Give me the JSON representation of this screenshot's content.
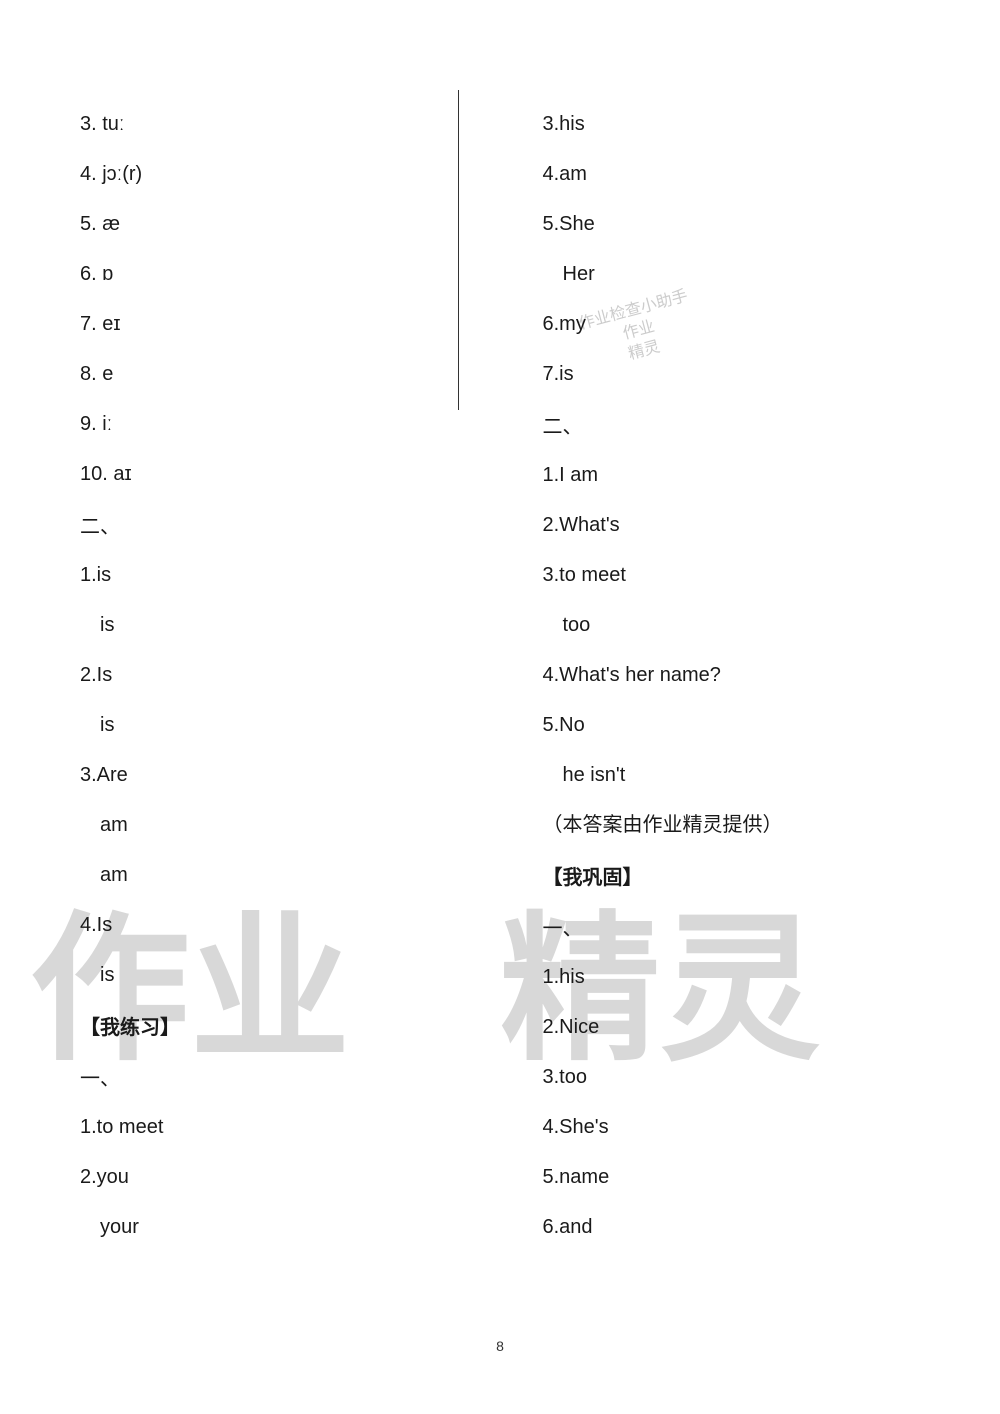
{
  "left": {
    "items": [
      "3. tuː",
      "4. jɔː(r)",
      "5. æ",
      "6. ɒ",
      "7. eɪ",
      "8. e",
      "9. iː",
      "10. aɪ"
    ],
    "section_two_label": "二、",
    "section_two": [
      "1.is",
      "is",
      "2.Is",
      "is",
      "3.Are",
      "am",
      "am",
      "4.Is",
      "is"
    ],
    "practice_label": "【我练习】",
    "practice_sub_label": "一、",
    "practice": [
      "1.to meet",
      "2.you",
      "your"
    ]
  },
  "right": {
    "items_top": [
      "3.his",
      "4.am",
      "5.She",
      "Her",
      "6.my",
      "7.is"
    ],
    "section_two_label": "二、",
    "section_two": [
      "1.I am",
      "2.What's",
      "3.to meet",
      "too",
      "4.What's her name?",
      "5.No",
      "he isn't"
    ],
    "credit": "（本答案由作业精灵提供）",
    "consolidate_label": "【我巩固】",
    "consolidate_sub_label": "一、",
    "consolidate": [
      "1.his",
      "2.Nice",
      "3.too",
      "4.She's",
      "5.name",
      "6.and"
    ]
  },
  "watermarks": {
    "big_left": "作业",
    "big_right": "精灵",
    "small_line1": "作业检查小助手",
    "small_line2": "作业",
    "small_line3": "精灵"
  },
  "page_number": "8",
  "indented_indices": {
    "left_section_two": [
      1,
      3,
      5,
      6,
      8
    ],
    "left_practice": [
      2
    ],
    "right_items_top": [
      3
    ],
    "right_section_two": [
      3,
      6
    ]
  },
  "styling": {
    "text_color": "#1a1a1a",
    "font_size": 20,
    "line_spacing": 22,
    "watermark_color": "#d8d8d8",
    "watermark_font_size": 160,
    "background_color": "#ffffff"
  }
}
